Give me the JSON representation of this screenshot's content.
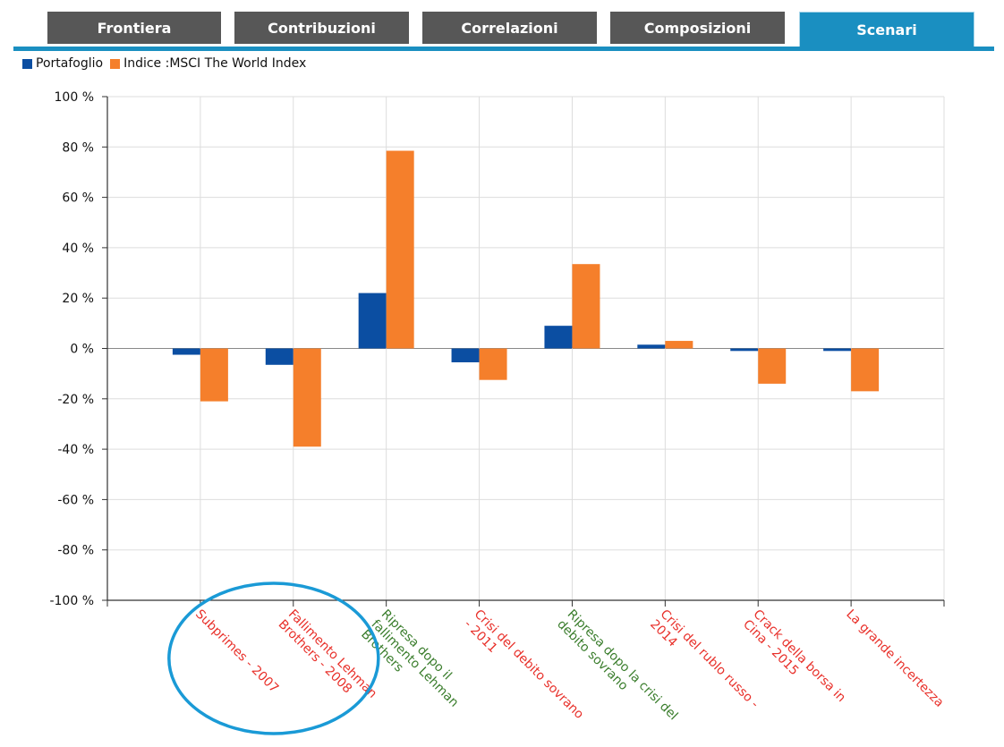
{
  "tabs": [
    {
      "label": "Frontiera",
      "active": false
    },
    {
      "label": "Contribuzioni",
      "active": false
    },
    {
      "label": "Correlazioni",
      "active": false
    },
    {
      "label": "Composizioni",
      "active": false
    },
    {
      "label": "Scenari",
      "active": true
    }
  ],
  "colors": {
    "portfolio": "#0b4ea2",
    "index": "#f57f2b",
    "label_negative": "#e8302a",
    "label_positive": "#3a7d2c",
    "annotation_circle": "#1a9ad6",
    "tab_bg": "#575757",
    "tab_active": "#1a8fc1"
  },
  "chart_data": {
    "type": "bar",
    "title": "",
    "xlabel": "",
    "ylabel": "",
    "ylim": [
      -100,
      100
    ],
    "yticks": [
      "100 %",
      "80 %",
      "60 %",
      "40 %",
      "20 %",
      "0 %",
      "-20 %",
      "-40 %",
      "-60 %",
      "-80 %",
      "-100 %"
    ],
    "ytick_values": [
      100,
      80,
      60,
      40,
      20,
      0,
      -20,
      -40,
      -60,
      -80,
      -100
    ],
    "grid": true,
    "legend_position": "top-left",
    "categories": [
      {
        "label": "Subprimes - 2007",
        "lines": [
          "Subprimes - 2007"
        ],
        "tone": "negative"
      },
      {
        "label": "Fallimento Lehman Brothers - 2008",
        "lines": [
          "Fallimento Lehman",
          "Brothers - 2008"
        ],
        "tone": "negative"
      },
      {
        "label": "Ripresa dopo il fallimento Lehman Brothers",
        "lines": [
          "Ripresa dopo il",
          "fallimento Lehman",
          "Brothers"
        ],
        "tone": "positive"
      },
      {
        "label": "Crisi del debito sovrano - 2011",
        "lines": [
          "Crisi del debito sovrano",
          "- 2011"
        ],
        "tone": "negative"
      },
      {
        "label": "Ripresa dopo la crisi del debito sovrano",
        "lines": [
          "Ripresa dopo la crisi del",
          "debito sovrano"
        ],
        "tone": "positive"
      },
      {
        "label": "Crisi del rublo russo - 2014",
        "lines": [
          "Crisi del rublo russo -",
          "2014"
        ],
        "tone": "negative"
      },
      {
        "label": "Crack della borsa in Cina - 2015",
        "lines": [
          "Crack della borsa in",
          "Cina - 2015"
        ],
        "tone": "negative"
      },
      {
        "label": "La grande incertezza",
        "lines": [
          "La grande incertezza"
        ],
        "tone": "negative"
      }
    ],
    "series": [
      {
        "name": "Portafoglio",
        "values": [
          -2.5,
          -6.5,
          22,
          -5.5,
          9,
          1.5,
          -1,
          -1
        ]
      },
      {
        "name": "Indice :MSCI The World Index",
        "values": [
          -21,
          -39,
          78.5,
          -12.5,
          33.5,
          3,
          -14,
          -17
        ]
      }
    ],
    "annotation": {
      "type": "ellipse",
      "around_categories": [
        0,
        1
      ],
      "note": ""
    }
  }
}
